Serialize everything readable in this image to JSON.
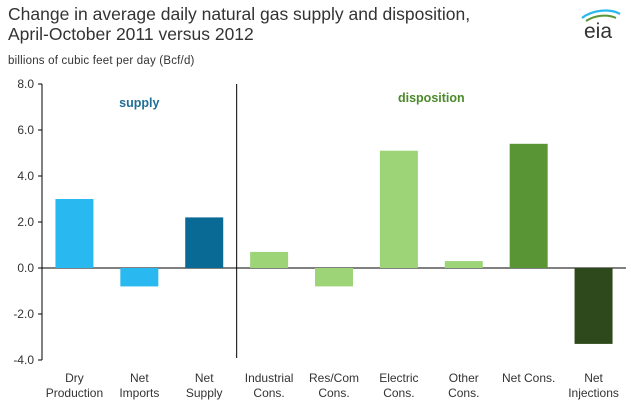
{
  "header": {
    "title_line1": "Change in average daily natural  gas supply and disposition,",
    "title_line2": "April-October 2011 versus 2012",
    "units": "billions of cubic feet per day (Bcf/d)"
  },
  "logo": {
    "text": "eia",
    "icon": "eia-logo-icon"
  },
  "colors": {
    "dry_production": "#29b8ef",
    "net_imports": "#29b8ef",
    "net_supply": "#0a6a96",
    "disposition_light": "#9dd477",
    "net_cons": "#5a9535",
    "net_injections": "#2e4a1c",
    "supply_label": "#1f6e96",
    "disposition_label": "#4b8a2a"
  },
  "chart_data": {
    "type": "bar",
    "title": "Change in average daily natural  gas supply and disposition, April-October 2011 versus 2012",
    "ylabel": "billions of cubic feet per day (Bcf/d)",
    "ylim": [
      -4.0,
      8.0
    ],
    "yticks": [
      "8.0",
      "6.0",
      "4.0",
      "2.0",
      "0.0",
      "-2.0",
      "-4.0"
    ],
    "grid": false,
    "categories": [
      [
        "Dry",
        "Production"
      ],
      [
        "Net",
        "Imports"
      ],
      [
        "Net",
        "Supply"
      ],
      [
        "Industrial",
        "Cons."
      ],
      [
        "Res/Com",
        "Cons."
      ],
      [
        "Electric",
        "Cons."
      ],
      [
        "Other",
        "Cons."
      ],
      [
        "Net Cons.",
        ""
      ],
      [
        "Net",
        "Injections"
      ]
    ],
    "values": [
      3.0,
      -0.8,
      2.2,
      0.7,
      -0.8,
      5.1,
      0.3,
      5.4,
      -3.3
    ],
    "bar_colors": [
      "#29b8ef",
      "#29b8ef",
      "#0a6a96",
      "#9dd477",
      "#9dd477",
      "#9dd477",
      "#9dd477",
      "#5a9535",
      "#2e4a1c"
    ],
    "annotations": [
      {
        "text": "supply",
        "group": "supply"
      },
      {
        "text": "disposition",
        "group": "disposition"
      }
    ]
  }
}
